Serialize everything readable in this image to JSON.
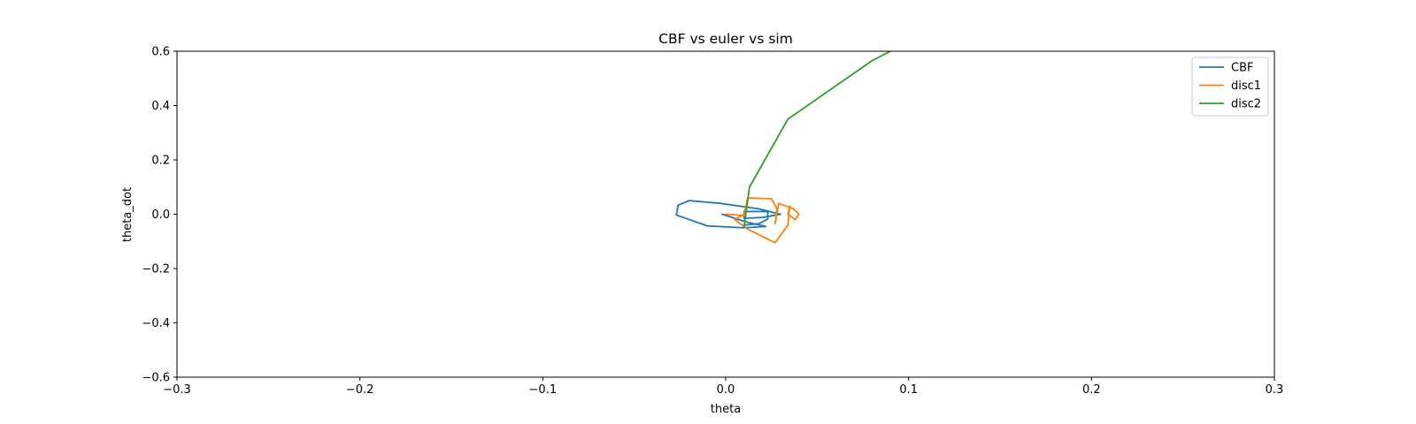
{
  "chart_data": {
    "type": "line",
    "title": "CBF vs euler vs sim",
    "xlabel": "theta",
    "ylabel": "theta_dot",
    "xlim": [
      -0.3,
      0.3
    ],
    "ylim": [
      -0.6,
      0.6
    ],
    "xticks": [
      -0.3,
      -0.2,
      -0.1,
      0.0,
      0.1,
      0.2,
      0.3
    ],
    "xtick_labels": [
      "−0.3",
      "−0.2",
      "−0.1",
      "0.0",
      "0.1",
      "0.2",
      "0.3"
    ],
    "yticks": [
      0.6,
      0.4,
      0.2,
      0.0,
      -0.2,
      -0.4,
      -0.6
    ],
    "ytick_labels": [
      "0.6",
      "0.4",
      "0.2",
      "0.0",
      "−0.2",
      "−0.4",
      "−0.6"
    ],
    "grid": false,
    "legend_position": "top-right",
    "series": [
      {
        "name": "CBF",
        "color": "#1f77b4",
        "points": [
          [
            -0.002,
            0.0
          ],
          [
            0.012,
            -0.03
          ],
          [
            0.022,
            -0.045
          ],
          [
            0.01,
            -0.05
          ],
          [
            -0.01,
            -0.043
          ],
          [
            -0.027,
            -0.003
          ],
          [
            -0.026,
            0.033
          ],
          [
            -0.02,
            0.05
          ],
          [
            -0.003,
            0.04
          ],
          [
            0.018,
            0.02
          ],
          [
            0.03,
            0.0
          ],
          [
            0.02,
            -0.012
          ],
          [
            0.01,
            -0.015
          ],
          [
            0.01,
            0.01
          ],
          [
            0.023,
            0.01
          ],
          [
            0.023,
            -0.018
          ],
          [
            0.018,
            -0.035
          ],
          [
            0.01,
            -0.04
          ]
        ]
      },
      {
        "name": "disc1",
        "color": "#ff7f0e",
        "points": [
          [
            0.0,
            0.0
          ],
          [
            0.01,
            -0.005
          ],
          [
            0.012,
            0.06
          ],
          [
            0.025,
            0.057
          ],
          [
            0.028,
            0.02
          ],
          [
            0.027,
            -0.035
          ],
          [
            0.029,
            0.04
          ],
          [
            0.037,
            0.02
          ],
          [
            0.04,
            0.0
          ],
          [
            0.038,
            -0.02
          ],
          [
            0.034,
            0.0
          ],
          [
            0.035,
            0.03
          ],
          [
            0.034,
            -0.04
          ],
          [
            0.027,
            -0.105
          ],
          [
            0.012,
            -0.055
          ],
          [
            0.005,
            -0.02
          ],
          [
            0.01,
            0.0
          ]
        ]
      },
      {
        "name": "disc2",
        "color": "#2ca02c",
        "points": [
          [
            0.01,
            -0.05
          ],
          [
            0.011,
            0.0
          ],
          [
            0.013,
            0.1
          ],
          [
            0.034,
            0.35
          ],
          [
            0.08,
            0.565
          ],
          [
            0.09,
            0.6
          ]
        ]
      }
    ]
  }
}
